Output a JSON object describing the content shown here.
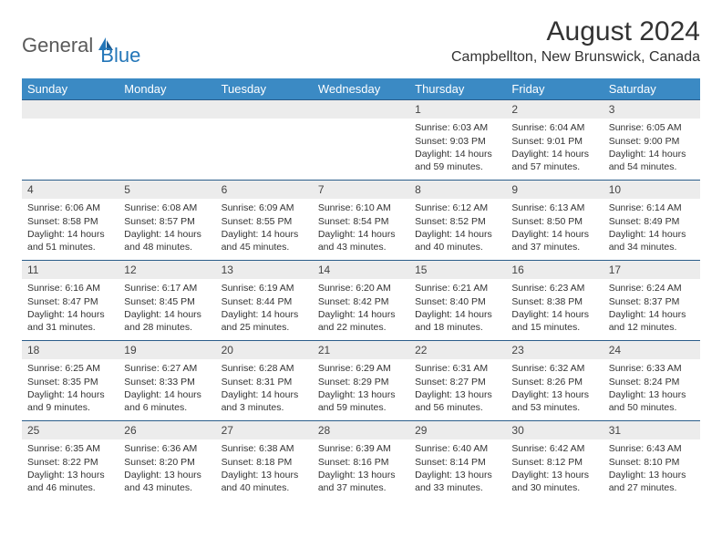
{
  "logo": {
    "text1": "General",
    "text2": "Blue"
  },
  "header": {
    "month_title": "August 2024",
    "location": "Campbellton, New Brunswick, Canada"
  },
  "colors": {
    "header_bg": "#3b8ac4",
    "header_text": "#ffffff",
    "daynum_bg": "#ececec",
    "border": "#2b5d8a",
    "logo_blue": "#2376b8"
  },
  "weekdays": [
    "Sunday",
    "Monday",
    "Tuesday",
    "Wednesday",
    "Thursday",
    "Friday",
    "Saturday"
  ],
  "weeks": [
    [
      {
        "empty": true
      },
      {
        "empty": true
      },
      {
        "empty": true
      },
      {
        "empty": true
      },
      {
        "num": "1",
        "sunrise": "Sunrise: 6:03 AM",
        "sunset": "Sunset: 9:03 PM",
        "day1": "Daylight: 14 hours",
        "day2": "and 59 minutes."
      },
      {
        "num": "2",
        "sunrise": "Sunrise: 6:04 AM",
        "sunset": "Sunset: 9:01 PM",
        "day1": "Daylight: 14 hours",
        "day2": "and 57 minutes."
      },
      {
        "num": "3",
        "sunrise": "Sunrise: 6:05 AM",
        "sunset": "Sunset: 9:00 PM",
        "day1": "Daylight: 14 hours",
        "day2": "and 54 minutes."
      }
    ],
    [
      {
        "num": "4",
        "sunrise": "Sunrise: 6:06 AM",
        "sunset": "Sunset: 8:58 PM",
        "day1": "Daylight: 14 hours",
        "day2": "and 51 minutes."
      },
      {
        "num": "5",
        "sunrise": "Sunrise: 6:08 AM",
        "sunset": "Sunset: 8:57 PM",
        "day1": "Daylight: 14 hours",
        "day2": "and 48 minutes."
      },
      {
        "num": "6",
        "sunrise": "Sunrise: 6:09 AM",
        "sunset": "Sunset: 8:55 PM",
        "day1": "Daylight: 14 hours",
        "day2": "and 45 minutes."
      },
      {
        "num": "7",
        "sunrise": "Sunrise: 6:10 AM",
        "sunset": "Sunset: 8:54 PM",
        "day1": "Daylight: 14 hours",
        "day2": "and 43 minutes."
      },
      {
        "num": "8",
        "sunrise": "Sunrise: 6:12 AM",
        "sunset": "Sunset: 8:52 PM",
        "day1": "Daylight: 14 hours",
        "day2": "and 40 minutes."
      },
      {
        "num": "9",
        "sunrise": "Sunrise: 6:13 AM",
        "sunset": "Sunset: 8:50 PM",
        "day1": "Daylight: 14 hours",
        "day2": "and 37 minutes."
      },
      {
        "num": "10",
        "sunrise": "Sunrise: 6:14 AM",
        "sunset": "Sunset: 8:49 PM",
        "day1": "Daylight: 14 hours",
        "day2": "and 34 minutes."
      }
    ],
    [
      {
        "num": "11",
        "sunrise": "Sunrise: 6:16 AM",
        "sunset": "Sunset: 8:47 PM",
        "day1": "Daylight: 14 hours",
        "day2": "and 31 minutes."
      },
      {
        "num": "12",
        "sunrise": "Sunrise: 6:17 AM",
        "sunset": "Sunset: 8:45 PM",
        "day1": "Daylight: 14 hours",
        "day2": "and 28 minutes."
      },
      {
        "num": "13",
        "sunrise": "Sunrise: 6:19 AM",
        "sunset": "Sunset: 8:44 PM",
        "day1": "Daylight: 14 hours",
        "day2": "and 25 minutes."
      },
      {
        "num": "14",
        "sunrise": "Sunrise: 6:20 AM",
        "sunset": "Sunset: 8:42 PM",
        "day1": "Daylight: 14 hours",
        "day2": "and 22 minutes."
      },
      {
        "num": "15",
        "sunrise": "Sunrise: 6:21 AM",
        "sunset": "Sunset: 8:40 PM",
        "day1": "Daylight: 14 hours",
        "day2": "and 18 minutes."
      },
      {
        "num": "16",
        "sunrise": "Sunrise: 6:23 AM",
        "sunset": "Sunset: 8:38 PM",
        "day1": "Daylight: 14 hours",
        "day2": "and 15 minutes."
      },
      {
        "num": "17",
        "sunrise": "Sunrise: 6:24 AM",
        "sunset": "Sunset: 8:37 PM",
        "day1": "Daylight: 14 hours",
        "day2": "and 12 minutes."
      }
    ],
    [
      {
        "num": "18",
        "sunrise": "Sunrise: 6:25 AM",
        "sunset": "Sunset: 8:35 PM",
        "day1": "Daylight: 14 hours",
        "day2": "and 9 minutes."
      },
      {
        "num": "19",
        "sunrise": "Sunrise: 6:27 AM",
        "sunset": "Sunset: 8:33 PM",
        "day1": "Daylight: 14 hours",
        "day2": "and 6 minutes."
      },
      {
        "num": "20",
        "sunrise": "Sunrise: 6:28 AM",
        "sunset": "Sunset: 8:31 PM",
        "day1": "Daylight: 14 hours",
        "day2": "and 3 minutes."
      },
      {
        "num": "21",
        "sunrise": "Sunrise: 6:29 AM",
        "sunset": "Sunset: 8:29 PM",
        "day1": "Daylight: 13 hours",
        "day2": "and 59 minutes."
      },
      {
        "num": "22",
        "sunrise": "Sunrise: 6:31 AM",
        "sunset": "Sunset: 8:27 PM",
        "day1": "Daylight: 13 hours",
        "day2": "and 56 minutes."
      },
      {
        "num": "23",
        "sunrise": "Sunrise: 6:32 AM",
        "sunset": "Sunset: 8:26 PM",
        "day1": "Daylight: 13 hours",
        "day2": "and 53 minutes."
      },
      {
        "num": "24",
        "sunrise": "Sunrise: 6:33 AM",
        "sunset": "Sunset: 8:24 PM",
        "day1": "Daylight: 13 hours",
        "day2": "and 50 minutes."
      }
    ],
    [
      {
        "num": "25",
        "sunrise": "Sunrise: 6:35 AM",
        "sunset": "Sunset: 8:22 PM",
        "day1": "Daylight: 13 hours",
        "day2": "and 46 minutes."
      },
      {
        "num": "26",
        "sunrise": "Sunrise: 6:36 AM",
        "sunset": "Sunset: 8:20 PM",
        "day1": "Daylight: 13 hours",
        "day2": "and 43 minutes."
      },
      {
        "num": "27",
        "sunrise": "Sunrise: 6:38 AM",
        "sunset": "Sunset: 8:18 PM",
        "day1": "Daylight: 13 hours",
        "day2": "and 40 minutes."
      },
      {
        "num": "28",
        "sunrise": "Sunrise: 6:39 AM",
        "sunset": "Sunset: 8:16 PM",
        "day1": "Daylight: 13 hours",
        "day2": "and 37 minutes."
      },
      {
        "num": "29",
        "sunrise": "Sunrise: 6:40 AM",
        "sunset": "Sunset: 8:14 PM",
        "day1": "Daylight: 13 hours",
        "day2": "and 33 minutes."
      },
      {
        "num": "30",
        "sunrise": "Sunrise: 6:42 AM",
        "sunset": "Sunset: 8:12 PM",
        "day1": "Daylight: 13 hours",
        "day2": "and 30 minutes."
      },
      {
        "num": "31",
        "sunrise": "Sunrise: 6:43 AM",
        "sunset": "Sunset: 8:10 PM",
        "day1": "Daylight: 13 hours",
        "day2": "and 27 minutes."
      }
    ]
  ]
}
